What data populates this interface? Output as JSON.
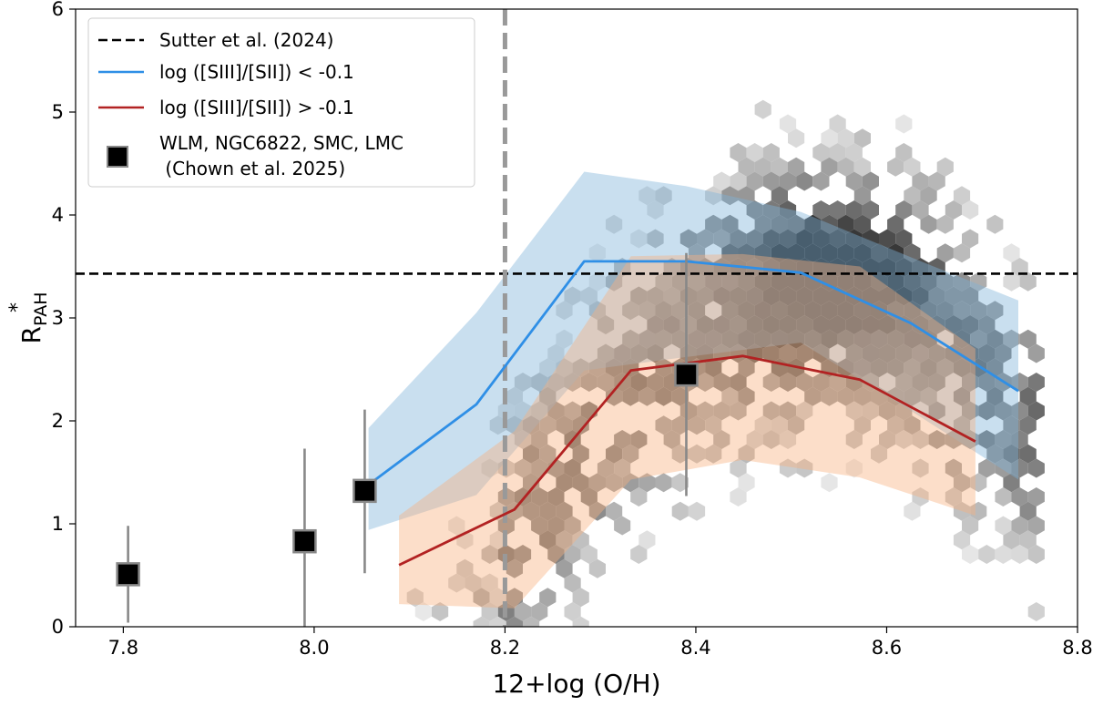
{
  "chart_data": {
    "type": "scatter",
    "xlabel": "12+log (O/H)",
    "ylabel": "R",
    "ylabel_superscript": "*",
    "ylabel_subscript": "PAH",
    "xlim": [
      7.75,
      8.8
    ],
    "ylim": [
      0,
      6
    ],
    "xticks": [
      "7.8",
      "8.0",
      "8.2",
      "8.4",
      "8.6",
      "8.8"
    ],
    "yticks": [
      "0",
      "1",
      "2",
      "3",
      "4",
      "5",
      "6"
    ],
    "grid": false,
    "legend_position": "top-left",
    "reference_lines": [
      {
        "orientation": "horizontal",
        "value": 3.43,
        "style": "dashed",
        "color": "#000000",
        "name": "Sutter et al. (2024)"
      },
      {
        "orientation": "vertical",
        "value": 8.2,
        "style": "dashed",
        "color": "#999999"
      }
    ],
    "series": [
      {
        "name": "log ([SIII]/[SII]) < -0.1",
        "type": "line",
        "color": "#2f8fe6",
        "band_color": "#7fb3d8",
        "x": [
          8.057,
          8.17,
          8.283,
          8.39,
          8.51,
          8.625,
          8.738
        ],
        "y": [
          1.38,
          2.16,
          3.55,
          3.55,
          3.44,
          2.95,
          2.29
        ],
        "band_upper": [
          1.93,
          3.05,
          4.42,
          4.28,
          4.03,
          3.59,
          3.17
        ],
        "band_lower": [
          0.94,
          1.28,
          2.49,
          2.62,
          2.76,
          2.1,
          1.43
        ]
      },
      {
        "name": "log ([SIII]/[SII]) > -0.1",
        "type": "line",
        "color": "#b22222",
        "band_color": "#f7b17f",
        "x": [
          8.089,
          8.21,
          8.332,
          8.449,
          8.572,
          8.693
        ],
        "y": [
          0.6,
          1.14,
          2.49,
          2.63,
          2.4,
          1.8
        ],
        "band_upper": [
          1.08,
          1.9,
          3.6,
          3.62,
          3.5,
          2.7
        ],
        "band_lower": [
          0.22,
          0.18,
          1.43,
          1.62,
          1.45,
          1.08
        ]
      },
      {
        "name": "WLM, NGC6822, SMC, LMC\n (Chown et al. 2025)",
        "type": "errorbar",
        "marker": "square",
        "color": "#000000",
        "x": [
          7.805,
          7.99,
          8.053,
          8.39
        ],
        "y": [
          0.51,
          0.83,
          1.32,
          2.45
        ],
        "y_low": [
          0.04,
          0.0,
          0.52,
          1.27
        ],
        "y_high": [
          0.98,
          1.73,
          2.11,
          3.63
        ]
      }
    ]
  },
  "legend": {
    "items": [
      {
        "label": "Sutter et al. (2024)"
      },
      {
        "label": "log ([SIII]/[SII]) < -0.1"
      },
      {
        "label": "log ([SIII]/[SII]) > -0.1"
      },
      {
        "label": "WLM, NGC6822, SMC, LMC"
      },
      {
        "label": " (Chown et al. 2025)"
      }
    ]
  }
}
